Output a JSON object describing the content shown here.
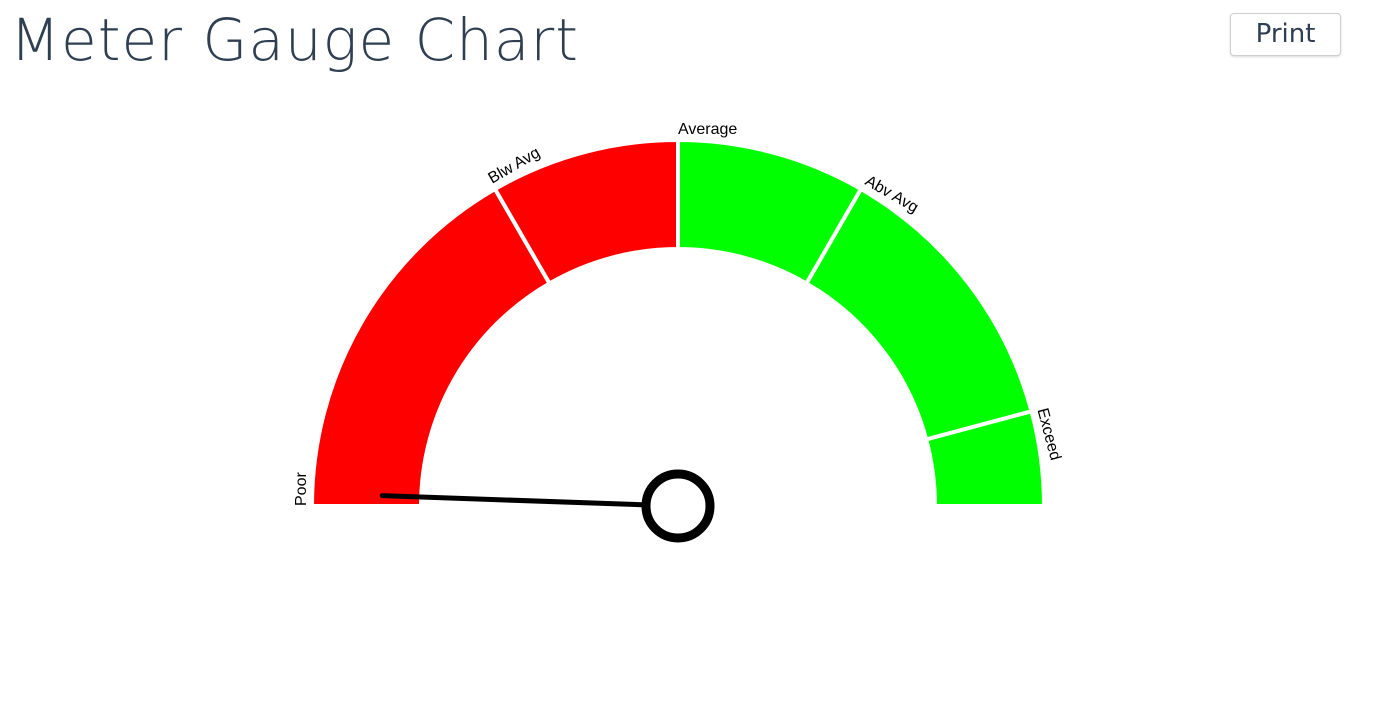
{
  "header": {
    "title": "Meter Gauge Chart",
    "print_label": "Print"
  },
  "chart_data": {
    "type": "gauge",
    "title": "Meter Gauge Chart",
    "range": [
      0,
      180
    ],
    "segments": [
      {
        "label": "Poor",
        "from": 0,
        "to": 60,
        "color": "#ff0000"
      },
      {
        "label": "Blw Avg",
        "from": 60,
        "to": 90,
        "color": "#ff0000"
      },
      {
        "label": "Average",
        "from": 90,
        "to": 120,
        "color": "#00ff00"
      },
      {
        "label": "Abv Avg",
        "from": 120,
        "to": 165,
        "color": "#00ff00"
      },
      {
        "label": "Exceed",
        "from": 165,
        "to": 180,
        "color": "#00ff00"
      }
    ],
    "value": 2
  }
}
